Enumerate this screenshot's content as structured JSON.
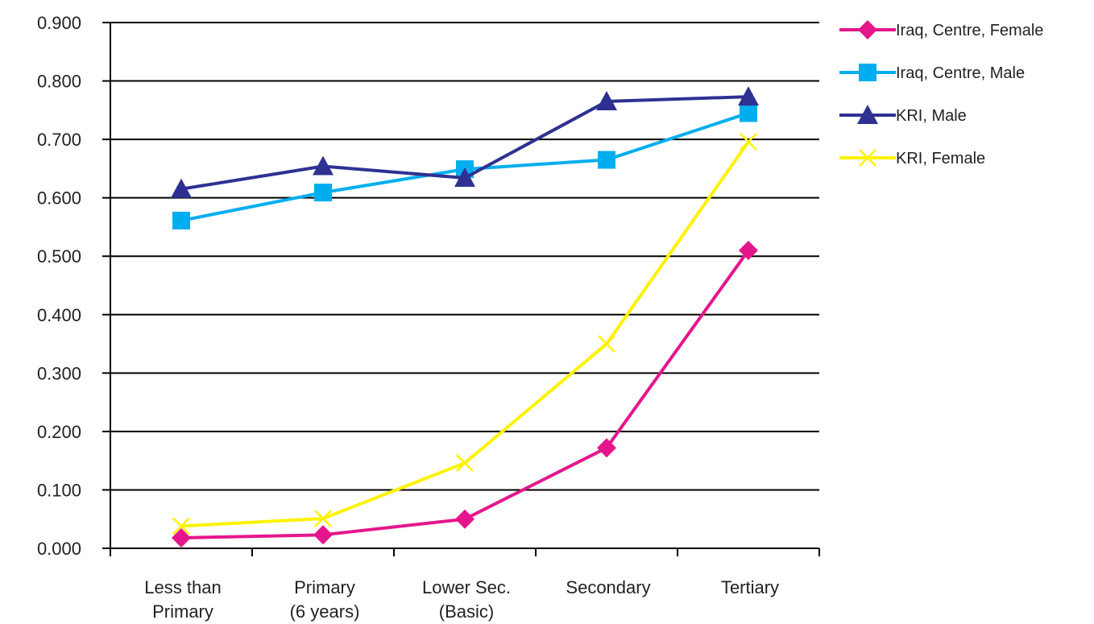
{
  "chart_data": {
    "type": "line",
    "categories": [
      [
        "Less than",
        "Primary"
      ],
      [
        "Primary",
        "(6 years)"
      ],
      [
        "Lower Sec.",
        "(Basic)"
      ],
      [
        "Secondary"
      ],
      [
        "Tertiary"
      ]
    ],
    "ylim": [
      0,
      0.9
    ],
    "yticks": [
      "0.000",
      "0.100",
      "0.200",
      "0.300",
      "0.400",
      "0.500",
      "0.600",
      "0.700",
      "0.800",
      "0.900"
    ],
    "grid": true,
    "legend_position": "right",
    "series": [
      {
        "name": "Iraq, Centre, Female",
        "color": "#e5168c",
        "marker": "diamond",
        "values": [
          0.018,
          0.023,
          0.05,
          0.172,
          0.51
        ]
      },
      {
        "name": "Iraq, Centre, Male",
        "color": "#00aeef",
        "marker": "square",
        "values": [
          0.561,
          0.609,
          0.649,
          0.665,
          0.745
        ]
      },
      {
        "name": "KRI, Male",
        "color": "#2e3192",
        "marker": "triangle",
        "values": [
          0.615,
          0.654,
          0.634,
          0.765,
          0.773
        ]
      },
      {
        "name": "KRI, Female",
        "color": "#fff200",
        "marker": "x",
        "values": [
          0.038,
          0.051,
          0.146,
          0.35,
          0.696
        ]
      }
    ]
  }
}
